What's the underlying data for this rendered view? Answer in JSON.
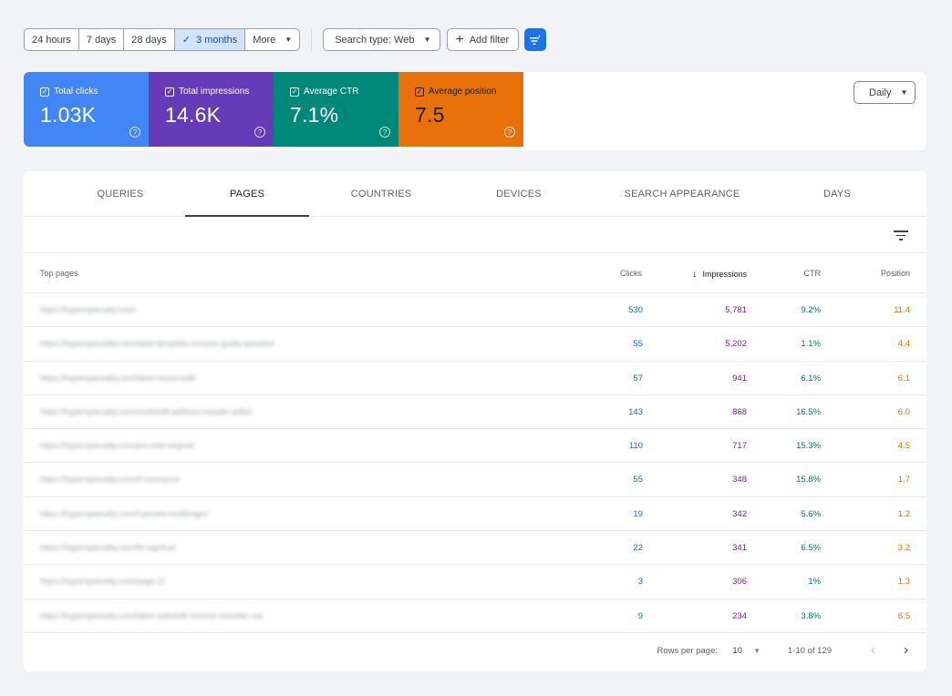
{
  "date_range": {
    "options": [
      {
        "label": "24 hours",
        "active": false
      },
      {
        "label": "7 days",
        "active": false
      },
      {
        "label": "28 days",
        "active": false
      },
      {
        "label": "3 months",
        "active": true
      },
      {
        "label": "More",
        "active": false
      }
    ]
  },
  "filters": {
    "search_type": "Search type: Web",
    "add_filter": "Add filter"
  },
  "metrics": [
    {
      "label": "Total clicks",
      "value": "1.03K",
      "color": "#4285f4",
      "checked": true
    },
    {
      "label": "Total impressions",
      "value": "14.6K",
      "color": "#673ab7",
      "checked": true
    },
    {
      "label": "Average CTR",
      "value": "7.1%",
      "color": "#00897b",
      "checked": true
    },
    {
      "label": "Average position",
      "value": "7.5",
      "color": "#e8710a",
      "checked": true
    }
  ],
  "granularity": "Daily",
  "tabs": [
    {
      "label": "QUERIES",
      "active": false
    },
    {
      "label": "PAGES",
      "active": true
    },
    {
      "label": "COUNTRIES",
      "active": false
    },
    {
      "label": "DEVICES",
      "active": false
    },
    {
      "label": "SEARCH APPEARANCE",
      "active": false
    },
    {
      "label": "DAYS",
      "active": false
    }
  ],
  "table": {
    "columns": {
      "page": "Top pages",
      "clicks": "Clicks",
      "impressions": "Impressions",
      "ctr": "CTR",
      "position": "Position"
    },
    "sorted_by": "impressions",
    "rows": [
      {
        "page": "https://hyperspecialty.com/",
        "clicks": "530",
        "impressions": "5,781",
        "ctr": "9.2%",
        "position": "11.4"
      },
      {
        "page": "https://hyperspecialty.com/label-template-remove-guide-question",
        "clicks": "55",
        "impressions": "5,202",
        "ctr": "1.1%",
        "position": "4.4"
      },
      {
        "page": "https://hyperspecialty.com/label-round-edit/",
        "clicks": "57",
        "impressions": "941",
        "ctr": "6.1%",
        "position": "6.1"
      },
      {
        "page": "https://hyperspecialty.com/multishift-address-header-adlee",
        "clicks": "143",
        "impressions": "868",
        "ctr": "16.5%",
        "position": "6.0"
      },
      {
        "page": "https://hyperspecialty.com/pro-edit-original",
        "clicks": "110",
        "impressions": "717",
        "ctr": "15.3%",
        "position": "4.5"
      },
      {
        "page": "https://hyperspecialty.com/tf-insurance",
        "clicks": "55",
        "impressions": "348",
        "ctr": "15.8%",
        "position": "1.7"
      },
      {
        "page": "https://hyperspecialty.com/f-pocket-multiorigin/",
        "clicks": "19",
        "impressions": "342",
        "ctr": "5.6%",
        "position": "1.2"
      },
      {
        "page": "https://hyperspecialty.com/tfr-signhue",
        "clicks": "22",
        "impressions": "341",
        "ctr": "6.5%",
        "position": "3.2"
      },
      {
        "page": "https://hyperspecialty.com/page-2/",
        "clicks": "3",
        "impressions": "306",
        "ctr": "1%",
        "position": "1.3"
      },
      {
        "page": "https://hyperspecialty.com/label-sideshift-remove-traveller-net",
        "clicks": "9",
        "impressions": "234",
        "ctr": "3.8%",
        "position": "6.5"
      }
    ]
  },
  "pagination": {
    "rows_per_page_label": "Rows per page:",
    "rows_per_page": "10",
    "range": "1-10 of 129"
  }
}
